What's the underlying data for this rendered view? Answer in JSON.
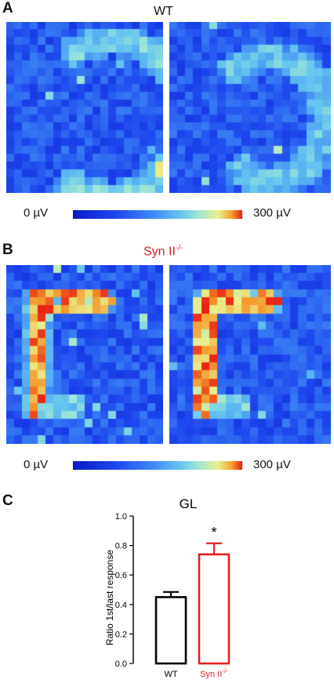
{
  "panel_a": {
    "letter": "A",
    "title": "WT",
    "colorbar": {
      "min_label": "0 µV",
      "max_label": "300 µV"
    }
  },
  "panel_b": {
    "letter": "B",
    "title_main": "Syn II",
    "title_sup": "-/-",
    "title_color": "#e02020",
    "colorbar": {
      "min_label": "0 µV",
      "max_label": "300 µV"
    }
  },
  "panel_c": {
    "letter": "C",
    "chart_data": {
      "type": "bar",
      "title": "GL",
      "ylabel": "Ratio 1st/last response",
      "xlabel": "",
      "ylim": [
        0.0,
        1.0
      ],
      "yticks": [
        "0.0",
        "0.2",
        "0.4",
        "0.6",
        "0.8",
        "1.0"
      ],
      "categories": [
        "WT",
        "Syn II"
      ],
      "category_sup": [
        "",
        "-/-"
      ],
      "values": [
        0.45,
        0.74
      ],
      "errors": [
        0.035,
        0.075
      ],
      "bar_colors": [
        "#000000",
        "#e02020"
      ],
      "annotations": [
        {
          "category": "Syn II",
          "text": "*"
        }
      ],
      "grid": false
    }
  }
}
